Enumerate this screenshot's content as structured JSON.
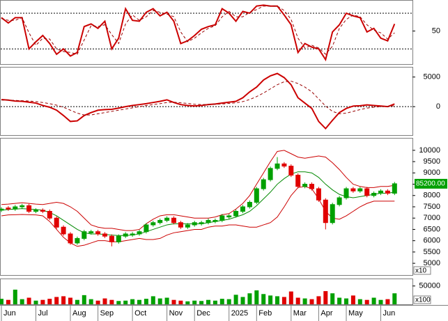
{
  "chart_data": [
    {
      "type": "line",
      "ylim": [
        13,
        84
      ],
      "yticks": [
        50
      ],
      "reference_lines": [
        30,
        70
      ],
      "series": [
        {
          "color": "#cc0000",
          "width": 2,
          "dash": false,
          "values": [
            65,
            59,
            65,
            65,
            30,
            38,
            45,
            36,
            24,
            30,
            22,
            26,
            55,
            58,
            53,
            61,
            30,
            42,
            75,
            62,
            61,
            71,
            75,
            67,
            71,
            61,
            36,
            39,
            45,
            52,
            55,
            57,
            75,
            70,
            61,
            72,
            70,
            78,
            79,
            78,
            78,
            68,
            57,
            26,
            36,
            32,
            30,
            18,
            49,
            57,
            70,
            67,
            65,
            49,
            53,
            42,
            39,
            58
          ]
        },
        {
          "color": "#990000",
          "width": 1,
          "dash": true,
          "values": [
            64,
            62,
            62,
            65,
            48,
            34,
            42,
            41,
            30,
            27,
            26,
            24,
            40,
            56,
            55,
            57,
            46,
            36,
            58,
            68,
            62,
            66,
            73,
            71,
            69,
            66,
            49,
            38,
            42,
            48,
            53,
            56,
            66,
            72,
            66,
            66,
            71,
            74,
            78,
            78,
            78,
            73,
            63,
            42,
            31,
            34,
            31,
            24,
            33,
            53,
            63,
            68,
            66,
            57,
            51,
            48,
            41,
            48
          ]
        }
      ]
    },
    {
      "type": "line",
      "ylim": [
        -4800,
        6600
      ],
      "yticks": [
        0,
        5000
      ],
      "reference_lines": [
        0
      ],
      "series": [
        {
          "color": "#cc0000",
          "width": 2,
          "dash": false,
          "values": [
            1200,
            1100,
            950,
            900,
            750,
            600,
            200,
            -100,
            -600,
            -1500,
            -2500,
            -2400,
            -1500,
            -1000,
            -600,
            -500,
            -450,
            -250,
            0,
            200,
            350,
            500,
            700,
            900,
            1150,
            700,
            350,
            200,
            120,
            200,
            350,
            450,
            600,
            750,
            900,
            1500,
            2500,
            3300,
            4500,
            5200,
            5600,
            4900,
            3700,
            1500,
            600,
            -300,
            -2500,
            -3700,
            -2300,
            -1000,
            -300,
            100,
            150,
            300,
            200,
            100,
            0,
            450
          ]
        },
        {
          "color": "#990000",
          "width": 1,
          "dash": true,
          "values": [
            1100,
            1100,
            1050,
            1000,
            950,
            850,
            700,
            500,
            250,
            -100,
            -600,
            -1100,
            -1400,
            -1400,
            -1200,
            -1000,
            -800,
            -600,
            -400,
            -200,
            0,
            200,
            350,
            500,
            700,
            750,
            650,
            550,
            400,
            350,
            350,
            400,
            450,
            550,
            650,
            850,
            1200,
            1700,
            2300,
            3000,
            3700,
            4200,
            4300,
            3900,
            3300,
            2500,
            1300,
            100,
            -800,
            -1200,
            -1100,
            -800,
            -500,
            -250,
            -100,
            0,
            50,
            150
          ]
        }
      ]
    },
    {
      "type": "candlestick",
      "ylim": [
        4480,
        10520
      ],
      "yticks": [
        5000,
        5500,
        6000,
        6500,
        7000,
        7500,
        8000,
        8500,
        9000,
        9500,
        10000
      ],
      "multiplier_label": "x10",
      "last_price_label": "85200.00",
      "up_color": "#00a000",
      "down_color": "#e00000",
      "open": [
        7350,
        7450,
        7400,
        7500,
        7550,
        7300,
        7350,
        7300,
        7000,
        6600,
        6300,
        5900,
        6100,
        6350,
        6400,
        6300,
        6200,
        5950,
        6200,
        6250,
        6300,
        6400,
        6700,
        6800,
        6900,
        7000,
        6800,
        6600,
        6700,
        6750,
        6800,
        6850,
        6900,
        7050,
        7100,
        7300,
        7500,
        7700,
        8300,
        8700,
        9200,
        9400,
        9300,
        8900,
        8400,
        8500,
        8300,
        7800,
        6800,
        7600,
        7900,
        8300,
        8200,
        8300,
        8000,
        8100,
        8200,
        8100
      ],
      "high": [
        7480,
        7530,
        7580,
        7630,
        7630,
        7430,
        7430,
        7380,
        7080,
        6680,
        6380,
        6180,
        6480,
        6480,
        6480,
        6380,
        6280,
        6280,
        6380,
        6380,
        6480,
        6780,
        6880,
        6980,
        7080,
        7080,
        6880,
        6780,
        6880,
        6880,
        6980,
        6980,
        7180,
        7180,
        7380,
        7580,
        7780,
        8380,
        8780,
        9280,
        9700,
        9480,
        9380,
        8980,
        8580,
        8580,
        8380,
        7880,
        7680,
        7980,
        8380,
        8380,
        8380,
        8380,
        8180,
        8280,
        8280,
        8600
      ],
      "low": [
        7270,
        7320,
        7320,
        7420,
        7220,
        7220,
        7220,
        6920,
        6520,
        6220,
        5820,
        5820,
        6020,
        6270,
        6220,
        6120,
        5750,
        5870,
        6120,
        6170,
        6220,
        6320,
        6620,
        6720,
        6820,
        6720,
        6520,
        6520,
        6620,
        6670,
        6720,
        6770,
        6820,
        6970,
        7020,
        7220,
        7420,
        7620,
        8220,
        8620,
        9120,
        9220,
        8820,
        8320,
        8320,
        8220,
        7720,
        6500,
        6720,
        7520,
        7820,
        8120,
        8120,
        7920,
        7920,
        8020,
        8020,
        8020
      ],
      "close": [
        7400,
        7400,
        7500,
        7550,
        7300,
        7350,
        7300,
        7000,
        6600,
        6300,
        5900,
        6100,
        6400,
        6400,
        6300,
        6200,
        5950,
        6200,
        6300,
        6300,
        6400,
        6700,
        6800,
        6900,
        7000,
        6800,
        6600,
        6700,
        6800,
        6800,
        6900,
        6900,
        7100,
        7100,
        7300,
        7500,
        7700,
        8300,
        8700,
        9200,
        9400,
        9300,
        8900,
        8400,
        8500,
        8300,
        7800,
        6800,
        7600,
        7900,
        8300,
        8200,
        8300,
        8000,
        8100,
        8200,
        8100,
        8520
      ],
      "series": [
        {
          "color": "#cc0000",
          "values": [
            7600,
            7620,
            7650,
            7680,
            7650,
            7620,
            7600,
            7650,
            7700,
            7650,
            7500,
            7300,
            7000,
            6700,
            6600,
            6550,
            6550,
            6500,
            6450,
            6450,
            6500,
            6750,
            6950,
            7100,
            7150,
            7150,
            7100,
            7050,
            7000,
            7000,
            7000,
            7050,
            7150,
            7200,
            7400,
            7650,
            8000,
            8500,
            9000,
            9500,
            9950,
            10000,
            9850,
            9700,
            9650,
            9700,
            9750,
            9700,
            9450,
            9150,
            8800,
            8500,
            8400,
            8350,
            8350,
            8400,
            8400,
            8450
          ]
        },
        {
          "color": "#008800",
          "values": [
            7350,
            7380,
            7400,
            7420,
            7400,
            7380,
            7350,
            7250,
            7100,
            6900,
            6700,
            6500,
            6350,
            6300,
            6300,
            6280,
            6250,
            6230,
            6230,
            6250,
            6300,
            6400,
            6500,
            6600,
            6700,
            6750,
            6750,
            6750,
            6750,
            6750,
            6800,
            6850,
            6900,
            6950,
            7050,
            7150,
            7300,
            7550,
            7850,
            8150,
            8500,
            8750,
            8950,
            9050,
            9050,
            9000,
            8800,
            8500,
            8250,
            8050,
            7950,
            7900,
            7950,
            8000,
            8050,
            8100,
            8100,
            8150
          ]
        },
        {
          "color": "#cc0000",
          "values": [
            7100,
            7140,
            7150,
            7160,
            7150,
            7140,
            7100,
            6850,
            6500,
            6150,
            5900,
            5750,
            5800,
            5900,
            6000,
            6000,
            5950,
            5950,
            6000,
            6050,
            6100,
            6050,
            6050,
            6100,
            6250,
            6350,
            6400,
            6450,
            6500,
            6500,
            6600,
            6650,
            6650,
            6700,
            6700,
            6650,
            6600,
            6600,
            6700,
            6800,
            7050,
            7500,
            8000,
            8350,
            8400,
            8300,
            7850,
            7300,
            7000,
            6950,
            7100,
            7300,
            7500,
            7650,
            7750,
            7750,
            7750,
            7750
          ]
        }
      ]
    },
    {
      "type": "bar",
      "ylim": [
        0,
        68500
      ],
      "yticks": [
        50000
      ],
      "multiplier_label": "x100",
      "categories": [
        "Jun",
        null,
        null,
        null,
        null,
        "Jul",
        null,
        null,
        null,
        null,
        "Aug",
        null,
        null,
        null,
        "Sep",
        null,
        null,
        null,
        null,
        "Oct",
        null,
        null,
        null,
        null,
        "Nov",
        null,
        null,
        null,
        "Dec",
        null,
        null,
        null,
        null,
        "2025",
        null,
        null,
        null,
        "Feb",
        null,
        null,
        null,
        null,
        "Mar",
        null,
        null,
        null,
        "Apr",
        null,
        null,
        null,
        "May",
        null,
        null,
        null,
        null,
        "Jun",
        null,
        null
      ],
      "values": [
        15000,
        12000,
        40000,
        14000,
        18000,
        10000,
        12000,
        15000,
        20000,
        22000,
        18000,
        12000,
        25000,
        14000,
        10000,
        16000,
        12000,
        9000,
        10000,
        14000,
        12000,
        15000,
        22000,
        16000,
        18000,
        12000,
        10000,
        8000,
        10000,
        9000,
        12000,
        10000,
        15000,
        14000,
        26000,
        20000,
        30000,
        38000,
        28000,
        24000,
        22000,
        20000,
        35000,
        18000,
        16000,
        14000,
        22000,
        36000,
        30000,
        18000,
        16000,
        24000,
        14000,
        12000,
        18000,
        12000,
        14000,
        30000
      ]
    }
  ]
}
